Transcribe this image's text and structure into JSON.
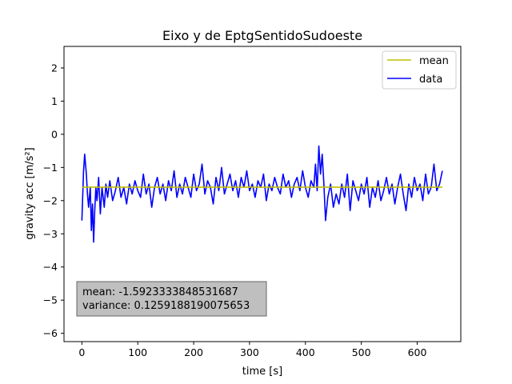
{
  "chart_data": {
    "type": "line",
    "title": "Eixo y de EptgSentidoSudoeste",
    "xlabel": "time [s]",
    "ylabel": "gravity acc [m/s²]",
    "xlim": [
      -32,
      678
    ],
    "ylim": [
      -6.25,
      2.65
    ],
    "xticks": [
      0,
      100,
      200,
      300,
      400,
      500,
      600
    ],
    "yticks": [
      -6,
      -5,
      -4,
      -3,
      -2,
      -1,
      0,
      1,
      2
    ],
    "xtick_labels": [
      "0",
      "100",
      "200",
      "300",
      "400",
      "500",
      "600"
    ],
    "ytick_labels": [
      "−6",
      "−5",
      "−4",
      "−3",
      "−2",
      "−1",
      "0",
      "1",
      "2"
    ],
    "legend_position": "upper-right",
    "grid": false,
    "series": [
      {
        "name": "mean",
        "color": "#bfbf00",
        "x": [
          0,
          645
        ],
        "y": [
          -1.5923,
          -1.5923
        ]
      },
      {
        "name": "data",
        "color": "#0000ff",
        "x": [
          0,
          3,
          5,
          8,
          10,
          12,
          15,
          17,
          19,
          21,
          23,
          25,
          27,
          30,
          33,
          36,
          40,
          43,
          46,
          50,
          55,
          60,
          65,
          70,
          75,
          80,
          85,
          90,
          95,
          100,
          105,
          110,
          115,
          120,
          125,
          130,
          135,
          140,
          145,
          150,
          155,
          160,
          165,
          170,
          175,
          180,
          185,
          190,
          195,
          200,
          205,
          210,
          215,
          220,
          225,
          230,
          235,
          240,
          245,
          250,
          255,
          260,
          265,
          270,
          275,
          280,
          285,
          290,
          295,
          300,
          305,
          310,
          315,
          320,
          325,
          330,
          335,
          340,
          345,
          350,
          355,
          360,
          365,
          370,
          375,
          380,
          385,
          390,
          395,
          400,
          405,
          410,
          415,
          418,
          421,
          424,
          427,
          430,
          433,
          436,
          440,
          445,
          450,
          455,
          460,
          465,
          470,
          475,
          480,
          485,
          490,
          495,
          500,
          505,
          510,
          515,
          520,
          525,
          530,
          535,
          540,
          545,
          550,
          555,
          560,
          565,
          570,
          575,
          580,
          585,
          590,
          595,
          600,
          605,
          610,
          615,
          620,
          625,
          630,
          635,
          640,
          645
        ],
        "y": [
          -2.6,
          -1.1,
          -0.6,
          -1.2,
          -1.8,
          -2.2,
          -1.6,
          -2.9,
          -2.1,
          -3.25,
          -2.3,
          -1.6,
          -2.0,
          -1.3,
          -2.4,
          -1.6,
          -2.2,
          -1.5,
          -1.9,
          -1.4,
          -2.0,
          -1.7,
          -1.3,
          -1.9,
          -1.6,
          -2.1,
          -1.5,
          -1.8,
          -1.4,
          -1.7,
          -1.9,
          -1.2,
          -1.8,
          -1.5,
          -2.2,
          -1.6,
          -1.3,
          -1.8,
          -1.5,
          -2.0,
          -1.4,
          -1.7,
          -1.1,
          -1.9,
          -1.5,
          -1.8,
          -1.3,
          -1.6,
          -1.9,
          -1.2,
          -1.7,
          -1.5,
          -0.9,
          -1.8,
          -1.4,
          -1.6,
          -2.1,
          -1.3,
          -1.7,
          -1.0,
          -1.8,
          -1.5,
          -1.2,
          -1.7,
          -1.4,
          -1.9,
          -1.3,
          -1.6,
          -1.1,
          -1.7,
          -1.5,
          -1.9,
          -1.4,
          -1.6,
          -1.2,
          -2.0,
          -1.5,
          -1.7,
          -1.3,
          -1.6,
          -1.8,
          -1.2,
          -1.6,
          -1.4,
          -1.9,
          -1.5,
          -1.3,
          -1.7,
          -1.1,
          -1.6,
          -1.9,
          -1.4,
          -1.6,
          -0.9,
          -1.7,
          -0.35,
          -1.2,
          -0.6,
          -1.5,
          -2.6,
          -1.9,
          -1.5,
          -2.2,
          -1.8,
          -2.1,
          -1.5,
          -1.9,
          -1.2,
          -2.3,
          -1.4,
          -1.7,
          -2.0,
          -1.5,
          -1.8,
          -1.3,
          -2.2,
          -1.6,
          -1.9,
          -1.4,
          -2.0,
          -1.7,
          -1.3,
          -1.8,
          -1.5,
          -2.1,
          -1.6,
          -1.2,
          -1.8,
          -2.3,
          -1.5,
          -1.9,
          -1.3,
          -1.7,
          -1.5,
          -2.0,
          -1.2,
          -1.8,
          -1.6,
          -0.9,
          -1.7,
          -1.5,
          -1.1
        ]
      }
    ],
    "annotation": {
      "mean_line": "mean: -1.5923333848531687",
      "variance_line": "variance: 0.1259188190075653"
    }
  }
}
